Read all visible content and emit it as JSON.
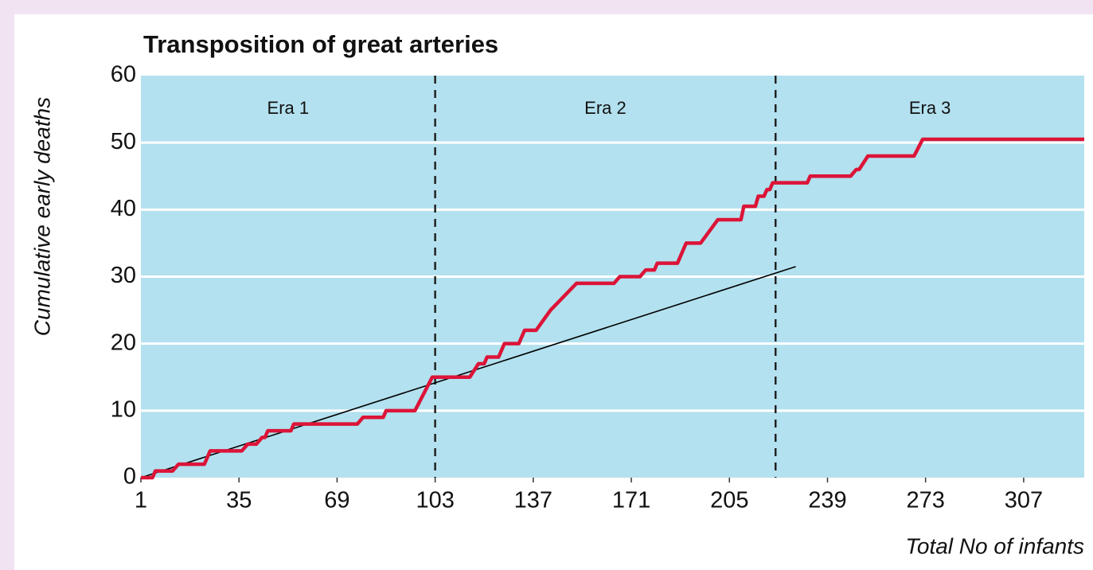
{
  "chart_data": {
    "type": "line",
    "title": "Transposition of great arteries",
    "xlabel": "Total No of infants",
    "ylabel": "Cumulative early deaths",
    "xlim": [
      1,
      328
    ],
    "ylim": [
      0,
      60
    ],
    "xticks": [
      1,
      35,
      69,
      103,
      137,
      171,
      205,
      239,
      273,
      307
    ],
    "yticks": [
      0,
      10,
      20,
      30,
      40,
      50,
      60
    ],
    "grid": true,
    "background": "#b3e1ef",
    "era_labels": [
      "Era 1",
      "Era 2",
      "Era 3"
    ],
    "era_boundaries": [
      103,
      221
    ],
    "series": [
      {
        "color": "#dc1438",
        "x": [
          1,
          5,
          6,
          12,
          14,
          23,
          25,
          36,
          38,
          41,
          43,
          44,
          45,
          53,
          54,
          76,
          78,
          85,
          86,
          96,
          102,
          115,
          118,
          120,
          121,
          125,
          127,
          132,
          134,
          138,
          143,
          152,
          165,
          167,
          174,
          176,
          179,
          180,
          187,
          190,
          195,
          201,
          209,
          210,
          214,
          215,
          217,
          218,
          219,
          220,
          232,
          233,
          247,
          249,
          250,
          253,
          269,
          272,
          328
        ],
        "values": [
          0,
          0,
          1,
          1,
          2,
          2,
          4,
          4,
          5,
          5,
          6,
          6,
          7,
          7,
          8,
          8,
          9,
          9,
          10,
          10,
          15,
          15,
          17,
          17,
          18,
          18,
          20,
          20,
          22,
          22,
          25,
          29,
          29,
          30,
          30,
          31,
          31,
          32,
          32,
          35,
          35,
          38.5,
          38.5,
          40.5,
          40.5,
          42,
          42,
          43,
          43,
          44,
          44,
          45,
          45,
          46,
          46,
          48,
          48,
          50.5,
          50.5
        ]
      },
      {
        "color": "#000000",
        "x": [
          1,
          228
        ],
        "values": [
          0,
          31.5
        ]
      }
    ]
  }
}
